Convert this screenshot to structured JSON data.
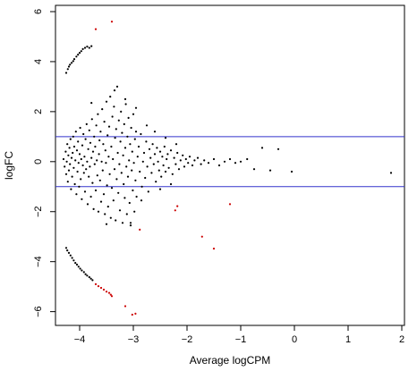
{
  "colors": {
    "point": "#000000",
    "highlight": "#cc0000",
    "hline": "#3333cc",
    "frame": "#000000"
  },
  "chart_data": {
    "type": "scatter",
    "title": "",
    "xlabel": "Average logCPM",
    "ylabel": "logFC",
    "xlim": [
      -4.45,
      2.05
    ],
    "ylim": [
      -6.55,
      6.25
    ],
    "xticks": [
      -4,
      -3,
      -2,
      -1,
      0,
      1,
      2
    ],
    "yticks": [
      -6,
      -4,
      -2,
      0,
      2,
      4,
      6
    ],
    "xtick_labels": [
      "−4",
      "−3",
      "−2",
      "−1",
      "0",
      "1",
      "2"
    ],
    "ytick_labels": [
      "−6",
      "−4",
      "−2",
      "0",
      "2",
      "4",
      "6"
    ],
    "hlines": [
      1,
      -1
    ],
    "grid": false,
    "series": [
      {
        "color": "#000000",
        "points": [
          [
            -4.25,
            3.55
          ],
          [
            -4.22,
            3.7
          ],
          [
            -4.2,
            3.8
          ],
          [
            -4.18,
            3.88
          ],
          [
            -4.15,
            3.95
          ],
          [
            -4.12,
            4.02
          ],
          [
            -4.1,
            4.1
          ],
          [
            -4.06,
            4.2
          ],
          [
            -4.03,
            4.28
          ],
          [
            -4.0,
            4.35
          ],
          [
            -3.97,
            4.42
          ],
          [
            -3.94,
            4.5
          ],
          [
            -3.9,
            4.55
          ],
          [
            -3.86,
            4.6
          ],
          [
            -3.82,
            4.55
          ],
          [
            -3.78,
            4.62
          ],
          [
            -4.25,
            -3.45
          ],
          [
            -4.23,
            -3.55
          ],
          [
            -4.2,
            -3.65
          ],
          [
            -4.17,
            -3.75
          ],
          [
            -4.14,
            -3.85
          ],
          [
            -4.11,
            -3.95
          ],
          [
            -4.08,
            -4.05
          ],
          [
            -4.05,
            -4.12
          ],
          [
            -4.02,
            -4.2
          ],
          [
            -3.99,
            -4.28
          ],
          [
            -3.96,
            -4.35
          ],
          [
            -3.92,
            -4.42
          ],
          [
            -3.89,
            -4.5
          ],
          [
            -3.86,
            -4.56
          ],
          [
            -3.82,
            -4.62
          ],
          [
            -3.79,
            -4.68
          ],
          [
            -3.76,
            -4.74
          ],
          [
            -4.3,
            0.1
          ],
          [
            -4.28,
            -0.2
          ],
          [
            -4.26,
            0.4
          ],
          [
            -4.25,
            -0.5
          ],
          [
            -4.24,
            0.0
          ],
          [
            -4.23,
            0.7
          ],
          [
            -4.22,
            -0.8
          ],
          [
            -4.21,
            0.25
          ],
          [
            -4.2,
            -0.35
          ],
          [
            -4.19,
            0.55
          ],
          [
            -4.18,
            -0.1
          ],
          [
            -4.17,
            0.9
          ],
          [
            -4.16,
            -1.1
          ],
          [
            -4.15,
            0.15
          ],
          [
            -4.14,
            -0.6
          ],
          [
            -4.13,
            0.35
          ],
          [
            -4.12,
            1.0
          ],
          [
            -4.11,
            -0.25
          ],
          [
            -4.1,
            0.6
          ],
          [
            -4.09,
            -0.9
          ],
          [
            -4.08,
            0.05
          ],
          [
            -4.07,
            1.2
          ],
          [
            -4.06,
            -1.3
          ],
          [
            -4.05,
            0.45
          ],
          [
            -4.04,
            -0.4
          ],
          [
            -4.03,
            0.8
          ],
          [
            -4.02,
            -0.05
          ],
          [
            -4.01,
            -1.0
          ],
          [
            -4.0,
            0.3
          ],
          [
            -3.99,
            1.35
          ],
          [
            -3.98,
            -0.7
          ],
          [
            -3.97,
            0.1
          ],
          [
            -3.96,
            -1.5
          ],
          [
            -3.95,
            0.65
          ],
          [
            -3.94,
            -0.15
          ],
          [
            -3.93,
            1.1
          ],
          [
            -3.92,
            -0.45
          ],
          [
            -3.91,
            0.2
          ],
          [
            -3.9,
            -1.2
          ],
          [
            -3.89,
            0.9
          ],
          [
            -3.88,
            -0.3
          ],
          [
            -3.87,
            1.5
          ],
          [
            -3.86,
            0.0
          ],
          [
            -3.85,
            -1.7
          ],
          [
            -3.84,
            0.5
          ],
          [
            -3.83,
            -0.6
          ],
          [
            -3.82,
            1.25
          ],
          [
            -3.81,
            -0.2
          ],
          [
            -3.8,
            0.75
          ],
          [
            -3.79,
            -1.4
          ],
          [
            -3.78,
            0.15
          ],
          [
            -3.77,
            1.7
          ],
          [
            -3.76,
            -0.85
          ],
          [
            -3.75,
            0.4
          ],
          [
            -3.74,
            -1.9
          ],
          [
            -3.73,
            1.0
          ],
          [
            -3.72,
            -0.1
          ],
          [
            -3.71,
            0.6
          ],
          [
            -3.7,
            -1.15
          ],
          [
            -3.69,
            1.45
          ],
          [
            -3.68,
            0.05
          ],
          [
            -3.67,
            -0.55
          ],
          [
            -3.66,
            1.9
          ],
          [
            -3.65,
            -2.0
          ],
          [
            -3.64,
            0.3
          ],
          [
            -3.63,
            0.85
          ],
          [
            -3.62,
            -0.75
          ],
          [
            -3.61,
            1.2
          ],
          [
            -3.6,
            -1.6
          ],
          [
            -3.59,
            0.0
          ],
          [
            -3.58,
            2.1
          ],
          [
            -3.57,
            -0.35
          ],
          [
            -3.56,
            0.7
          ],
          [
            -3.55,
            -1.3
          ],
          [
            -3.54,
            1.6
          ],
          [
            -3.53,
            -2.1
          ],
          [
            -3.52,
            0.45
          ],
          [
            -3.51,
            -0.05
          ],
          [
            -3.5,
            2.4
          ],
          [
            -3.49,
            -0.95
          ],
          [
            -3.48,
            1.05
          ],
          [
            -3.47,
            -1.8
          ],
          [
            -3.46,
            0.2
          ],
          [
            -3.45,
            1.4
          ],
          [
            -3.44,
            -0.5
          ],
          [
            -3.43,
            2.6
          ],
          [
            -3.42,
            -2.25
          ],
          [
            -3.41,
            0.6
          ],
          [
            -3.4,
            -1.05
          ],
          [
            -3.39,
            1.8
          ],
          [
            -3.38,
            0.1
          ],
          [
            -3.37,
            -1.55
          ],
          [
            -3.36,
            2.2
          ],
          [
            -3.35,
            -0.3
          ],
          [
            -3.34,
            0.95
          ],
          [
            -3.33,
            -2.35
          ],
          [
            -3.32,
            1.3
          ],
          [
            -3.31,
            -0.7
          ],
          [
            -3.3,
            3.0
          ],
          [
            -3.29,
            0.35
          ],
          [
            -3.28,
            -1.25
          ],
          [
            -3.27,
            1.65
          ],
          [
            -3.26,
            -0.1
          ],
          [
            -3.25,
            -1.95
          ],
          [
            -3.24,
            0.8
          ],
          [
            -3.23,
            2.0
          ],
          [
            -3.22,
            -0.45
          ],
          [
            -3.21,
            1.15
          ],
          [
            -3.2,
            -2.45
          ],
          [
            -3.19,
            0.25
          ],
          [
            -3.18,
            -0.9
          ],
          [
            -3.17,
            1.5
          ],
          [
            -3.16,
            -1.45
          ],
          [
            -3.15,
            0.55
          ],
          [
            -3.14,
            2.3
          ],
          [
            -3.13,
            -0.2
          ],
          [
            -3.12,
            -2.1
          ],
          [
            -3.11,
            1.0
          ],
          [
            -3.1,
            -0.6
          ],
          [
            -3.09,
            1.75
          ],
          [
            -3.08,
            0.05
          ],
          [
            -3.07,
            -1.65
          ],
          [
            -3.06,
            0.7
          ],
          [
            -3.05,
            -2.55
          ],
          [
            -3.04,
            1.35
          ],
          [
            -3.03,
            -0.35
          ],
          [
            -3.02,
            0.4
          ],
          [
            -3.01,
            -1.15
          ],
          [
            -3.0,
            1.9
          ],
          [
            -2.99,
            -0.05
          ],
          [
            -2.98,
            -2.0
          ],
          [
            -2.97,
            0.9
          ],
          [
            -2.96,
            -0.75
          ],
          [
            -2.95,
            1.2
          ],
          [
            -2.94,
            -1.4
          ],
          [
            -2.92,
            0.2
          ],
          [
            -2.9,
            0.6
          ],
          [
            -2.88,
            -0.4
          ],
          [
            -2.86,
            1.1
          ],
          [
            -2.84,
            -1.0
          ],
          [
            -2.82,
            0.0
          ],
          [
            -2.8,
            0.35
          ],
          [
            -2.78,
            -0.65
          ],
          [
            -2.76,
            0.8
          ],
          [
            -2.74,
            -0.2
          ],
          [
            -2.72,
            -1.2
          ],
          [
            -2.7,
            0.5
          ],
          [
            -2.68,
            0.15
          ],
          [
            -2.66,
            -0.45
          ],
          [
            -2.64,
            0.7
          ],
          [
            -2.62,
            -0.1
          ],
          [
            -2.6,
            0.3
          ],
          [
            -2.58,
            -0.8
          ],
          [
            -2.56,
            0.55
          ],
          [
            -2.54,
            0.0
          ],
          [
            -2.52,
            -0.35
          ],
          [
            -2.5,
            0.4
          ],
          [
            -2.48,
            -0.6
          ],
          [
            -2.46,
            0.2
          ],
          [
            -2.44,
            -0.15
          ],
          [
            -2.42,
            0.6
          ],
          [
            -2.4,
            -0.4
          ],
          [
            -2.38,
            0.1
          ],
          [
            -2.36,
            0.3
          ],
          [
            -2.34,
            -0.25
          ],
          [
            -2.3,
            0.45
          ],
          [
            -2.27,
            -0.5
          ],
          [
            -2.24,
            0.15
          ],
          [
            -2.21,
            -0.1
          ],
          [
            -2.18,
            0.35
          ],
          [
            -2.15,
            -0.3
          ],
          [
            -2.12,
            0.05
          ],
          [
            -2.08,
            0.25
          ],
          [
            -2.05,
            -0.2
          ],
          [
            -2.02,
            0.1
          ],
          [
            -1.98,
            -0.05
          ],
          [
            -1.95,
            0.2
          ],
          [
            -1.9,
            -0.15
          ],
          [
            -1.86,
            0.05
          ],
          [
            -1.8,
            0.15
          ],
          [
            -1.74,
            -0.1
          ],
          [
            -1.68,
            0.05
          ],
          [
            -1.6,
            -0.05
          ],
          [
            -1.5,
            0.1
          ],
          [
            -1.4,
            -0.15
          ],
          [
            -1.3,
            0.0
          ],
          [
            -1.2,
            0.1
          ],
          [
            -1.1,
            -0.05
          ],
          [
            -1.0,
            0.0
          ],
          [
            -0.88,
            0.1
          ],
          [
            -0.75,
            -0.3
          ],
          [
            -0.6,
            0.55
          ],
          [
            -0.45,
            -0.35
          ],
          [
            -0.3,
            0.5
          ],
          [
            -0.05,
            -0.4
          ],
          [
            1.8,
            -0.45
          ],
          [
            -3.78,
            2.35
          ],
          [
            -3.5,
            -2.5
          ],
          [
            -3.35,
            2.85
          ],
          [
            -3.15,
            2.5
          ],
          [
            -3.05,
            -2.45
          ],
          [
            -2.95,
            2.15
          ],
          [
            -2.85,
            -1.55
          ],
          [
            -2.75,
            1.45
          ],
          [
            -2.6,
            1.2
          ],
          [
            -2.5,
            -1.1
          ],
          [
            -2.4,
            0.95
          ],
          [
            -2.3,
            -0.9
          ],
          [
            -2.2,
            0.7
          ]
        ]
      },
      {
        "color": "#cc0000",
        "points": [
          [
            -3.4,
            5.6
          ],
          [
            -3.7,
            5.3
          ],
          [
            -3.7,
            -4.9
          ],
          [
            -3.65,
            -4.98
          ],
          [
            -3.6,
            -5.05
          ],
          [
            -3.55,
            -5.12
          ],
          [
            -3.5,
            -5.2
          ],
          [
            -3.45,
            -5.25
          ],
          [
            -3.42,
            -5.32
          ],
          [
            -3.4,
            -5.38
          ],
          [
            -3.15,
            -5.78
          ],
          [
            -3.02,
            -6.12
          ],
          [
            -2.96,
            -6.08
          ],
          [
            -2.88,
            -2.72
          ],
          [
            -2.22,
            -1.95
          ],
          [
            -2.18,
            -1.78
          ],
          [
            -1.72,
            -3.0
          ],
          [
            -1.5,
            -3.48
          ],
          [
            -1.2,
            -1.7
          ]
        ]
      }
    ]
  }
}
